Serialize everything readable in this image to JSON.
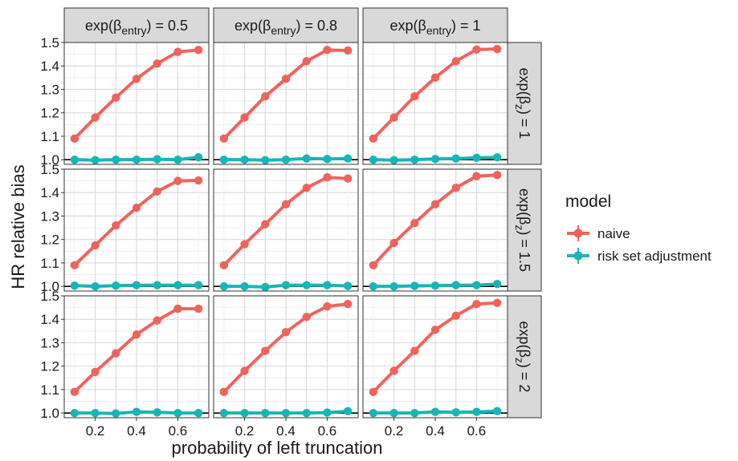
{
  "chart_data": {
    "type": "line",
    "xlabel": "probability of left truncation",
    "ylabel": "HR relative bias",
    "xlim": [
      0.05,
      0.75
    ],
    "ylim": [
      0.98,
      1.5
    ],
    "x_ticks": [
      0.2,
      0.3,
      0.4,
      0.5,
      0.6
    ],
    "x_tick_labels": [
      "0.2",
      "0.4",
      "0.6"
    ],
    "y_ticks": [
      1.0,
      1.1,
      1.2,
      1.3,
      1.4,
      1.5
    ],
    "y_tick_labels": [
      "1.0",
      "1.1",
      "1.2",
      "1.3",
      "1.4",
      "1.5"
    ],
    "reference_line": 1.0,
    "grid": true,
    "x": [
      0.1,
      0.2,
      0.3,
      0.4,
      0.5,
      0.6,
      0.7
    ],
    "column_strips": [
      {
        "prefix": "exp(β",
        "sub": "entry",
        "suffix": ") = 0.5"
      },
      {
        "prefix": "exp(β",
        "sub": "entry",
        "suffix": ") = 0.8"
      },
      {
        "prefix": "exp(β",
        "sub": "entry",
        "suffix": ") = 1"
      }
    ],
    "row_strips": [
      {
        "prefix": "exp(β",
        "sub": "z",
        "suffix": ") = 1"
      },
      {
        "prefix": "exp(β",
        "sub": "z",
        "suffix": ") = 1.5"
      },
      {
        "prefix": "exp(β",
        "sub": "z",
        "suffix": ") = 2"
      }
    ],
    "legend": {
      "title": "model",
      "position": "right",
      "items": [
        {
          "label": "naive",
          "color": "#f0635d"
        },
        {
          "label": "risk set adjustment",
          "color": "#18b5b6"
        }
      ]
    },
    "panels": [
      {
        "row": 0,
        "col": 0,
        "series": [
          {
            "name": "naive",
            "values": [
              1.09,
              1.18,
              1.265,
              1.345,
              1.41,
              1.46,
              1.468
            ]
          },
          {
            "name": "risk set adjustment",
            "values": [
              1.0,
              0.998,
              1.0,
              1.0,
              1.002,
              1.0,
              1.01
            ]
          }
        ]
      },
      {
        "row": 0,
        "col": 1,
        "series": [
          {
            "name": "naive",
            "values": [
              1.09,
              1.18,
              1.27,
              1.345,
              1.42,
              1.468,
              1.466
            ]
          },
          {
            "name": "risk set adjustment",
            "values": [
              1.0,
              1.0,
              0.998,
              1.0,
              1.005,
              1.003,
              1.005
            ]
          }
        ]
      },
      {
        "row": 0,
        "col": 2,
        "series": [
          {
            "name": "naive",
            "values": [
              1.09,
              1.18,
              1.27,
              1.35,
              1.42,
              1.47,
              1.472
            ]
          },
          {
            "name": "risk set adjustment",
            "values": [
              1.0,
              0.998,
              1.0,
              1.003,
              1.005,
              1.008,
              1.01
            ]
          }
        ]
      },
      {
        "row": 1,
        "col": 0,
        "series": [
          {
            "name": "naive",
            "values": [
              1.09,
              1.175,
              1.26,
              1.335,
              1.405,
              1.45,
              1.452
            ]
          },
          {
            "name": "risk set adjustment",
            "values": [
              1.003,
              1.0,
              1.003,
              1.005,
              1.005,
              1.005,
              1.005
            ]
          }
        ]
      },
      {
        "row": 1,
        "col": 1,
        "series": [
          {
            "name": "naive",
            "values": [
              1.09,
              1.18,
              1.265,
              1.35,
              1.42,
              1.465,
              1.46
            ]
          },
          {
            "name": "risk set adjustment",
            "values": [
              1.0,
              1.0,
              0.997,
              1.005,
              1.005,
              1.005,
              1.002
            ]
          }
        ]
      },
      {
        "row": 1,
        "col": 2,
        "series": [
          {
            "name": "naive",
            "values": [
              1.09,
              1.185,
              1.27,
              1.35,
              1.42,
              1.47,
              1.475
            ]
          },
          {
            "name": "risk set adjustment",
            "values": [
              1.0,
              1.0,
              1.002,
              1.003,
              1.005,
              1.005,
              1.01
            ]
          }
        ]
      },
      {
        "row": 2,
        "col": 0,
        "series": [
          {
            "name": "naive",
            "values": [
              1.09,
              1.175,
              1.255,
              1.335,
              1.395,
              1.445,
              1.445
            ]
          },
          {
            "name": "risk set adjustment",
            "values": [
              1.0,
              1.0,
              0.998,
              1.005,
              1.003,
              1.0,
              1.0
            ]
          }
        ]
      },
      {
        "row": 2,
        "col": 1,
        "series": [
          {
            "name": "naive",
            "values": [
              1.09,
              1.18,
              1.265,
              1.345,
              1.41,
              1.455,
              1.465
            ]
          },
          {
            "name": "risk set adjustment",
            "values": [
              1.0,
              1.0,
              1.0,
              1.0,
              1.0,
              1.002,
              1.008
            ]
          }
        ]
      },
      {
        "row": 2,
        "col": 2,
        "series": [
          {
            "name": "naive",
            "values": [
              1.09,
              1.18,
              1.265,
              1.355,
              1.415,
              1.465,
              1.47
            ]
          },
          {
            "name": "risk set adjustment",
            "values": [
              1.0,
              1.0,
              1.0,
              1.005,
              1.003,
              1.005,
              1.008
            ]
          }
        ]
      }
    ]
  }
}
